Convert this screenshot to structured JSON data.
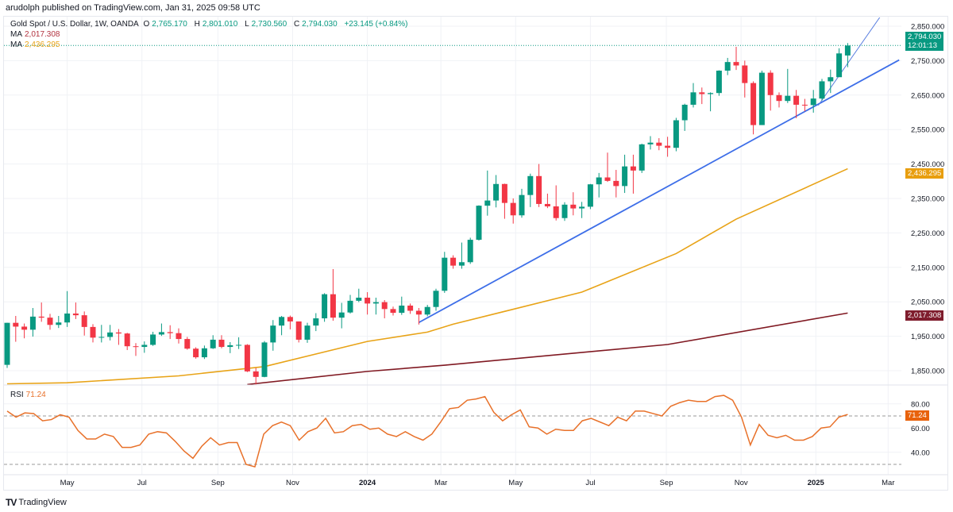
{
  "publisher": "arudolph published on TradingView.com, Jan 31, 2025 09:58 UTC",
  "legend": {
    "symbol": "Gold Spot / U.S. Dollar, 1W, OANDA",
    "open_label": "O",
    "open": "2,765.170",
    "high_label": "H",
    "high": "2,801.010",
    "low_label": "L",
    "low": "2,730.560",
    "close_label": "C",
    "close": "2,794.030",
    "change": "+23.145 (+0.84%)",
    "ma1_label": "MA",
    "ma1_value": "2,017.308",
    "ma2_label": "MA",
    "ma2_value": "2,436.295",
    "rsi_label": "RSI",
    "rsi_value": "71.24"
  },
  "tags": {
    "price": "2,794.030",
    "countdown": "12:01:13",
    "ma2": "2,436.295",
    "ma1": "2,017.308",
    "rsi": "71.24"
  },
  "brand": "TradingView",
  "colors": {
    "up": "#089981",
    "down": "#f23645",
    "ma_slow": "#801922",
    "ma_fast": "#e8a317",
    "trendline": "#3d6ee8",
    "rsi": "#e8712a",
    "rsi_tag": "#e8620c"
  },
  "chart_data": {
    "type": "candlestick",
    "title": "Gold Spot / U.S. Dollar, 1W, OANDA",
    "price_axis": {
      "ticks": [
        "2,850.000",
        "2,750.000",
        "2,650.000",
        "2,550.000",
        "2,450.000",
        "2,350.000",
        "2,250.000",
        "2,150.000",
        "2,050.000",
        "1,950.000",
        "1,850.000"
      ],
      "tick_values": [
        2850,
        2750,
        2650,
        2550,
        2450,
        2350,
        2250,
        2150,
        2050,
        1950,
        1850
      ]
    },
    "time_axis": [
      {
        "label": "May",
        "date": "2023-05-01"
      },
      {
        "label": "Jul",
        "date": "2023-07-01"
      },
      {
        "label": "Sep",
        "date": "2023-09-01"
      },
      {
        "label": "Nov",
        "date": "2023-11-01"
      },
      {
        "label": "2024",
        "date": "2024-01-01",
        "bold": true
      },
      {
        "label": "Mar",
        "date": "2024-03-01"
      },
      {
        "label": "May",
        "date": "2024-05-01"
      },
      {
        "label": "Jul",
        "date": "2024-07-01"
      },
      {
        "label": "Sep",
        "date": "2024-09-01"
      },
      {
        "label": "Nov",
        "date": "2024-11-01"
      },
      {
        "label": "2025",
        "date": "2025-01-01",
        "bold": true
      },
      {
        "label": "Mar",
        "date": "2025-03-01"
      }
    ],
    "candles_columns": [
      "date",
      "open",
      "high",
      "low",
      "close"
    ],
    "candles": [
      [
        "2023-03-13",
        1867,
        1989,
        1858,
        1989
      ],
      [
        "2023-03-20",
        1989,
        2009,
        1934,
        1978
      ],
      [
        "2023-03-27",
        1978,
        1987,
        1944,
        1969
      ],
      [
        "2023-04-03",
        1969,
        2032,
        1949,
        2007
      ],
      [
        "2023-04-10",
        2007,
        2048,
        1992,
        2004
      ],
      [
        "2023-04-17",
        2004,
        2015,
        1969,
        1983
      ],
      [
        "2023-04-24",
        1983,
        2009,
        1974,
        1990
      ],
      [
        "2023-05-01",
        1990,
        2081,
        1977,
        2016
      ],
      [
        "2023-05-08",
        2016,
        2048,
        2000,
        2011
      ],
      [
        "2023-05-15",
        2011,
        2022,
        1952,
        1977
      ],
      [
        "2023-05-22",
        1977,
        1985,
        1932,
        1946
      ],
      [
        "2023-05-29",
        1946,
        1983,
        1932,
        1948
      ],
      [
        "2023-06-05",
        1948,
        1983,
        1938,
        1961
      ],
      [
        "2023-06-12",
        1961,
        1971,
        1925,
        1958
      ],
      [
        "2023-06-19",
        1958,
        1960,
        1910,
        1921
      ],
      [
        "2023-06-26",
        1921,
        1930,
        1893,
        1919
      ],
      [
        "2023-07-03",
        1919,
        1935,
        1902,
        1925
      ],
      [
        "2023-07-10",
        1925,
        1963,
        1922,
        1955
      ],
      [
        "2023-07-17",
        1955,
        1987,
        1951,
        1962
      ],
      [
        "2023-07-24",
        1962,
        1982,
        1942,
        1959
      ],
      [
        "2023-07-31",
        1959,
        1973,
        1929,
        1942
      ],
      [
        "2023-08-07",
        1942,
        1948,
        1911,
        1914
      ],
      [
        "2023-08-14",
        1914,
        1918,
        1885,
        1889
      ],
      [
        "2023-08-21",
        1889,
        1923,
        1884,
        1915
      ],
      [
        "2023-08-28",
        1915,
        1953,
        1913,
        1940
      ],
      [
        "2023-09-04",
        1940,
        1953,
        1915,
        1919
      ],
      [
        "2023-09-11",
        1919,
        1933,
        1901,
        1924
      ],
      [
        "2023-09-18",
        1924,
        1947,
        1913,
        1925
      ],
      [
        "2023-09-25",
        1925,
        1927,
        1846,
        1848
      ],
      [
        "2023-10-02",
        1848,
        1858,
        1810,
        1832
      ],
      [
        "2023-10-09",
        1832,
        1936,
        1831,
        1932
      ],
      [
        "2023-10-16",
        1932,
        1997,
        1908,
        1981
      ],
      [
        "2023-10-23",
        1981,
        2009,
        1953,
        2006
      ],
      [
        "2023-10-30",
        2006,
        2010,
        1970,
        1993
      ],
      [
        "2023-11-06",
        1993,
        1993,
        1932,
        1940
      ],
      [
        "2023-11-13",
        1940,
        1989,
        1931,
        1981
      ],
      [
        "2023-11-20",
        1981,
        2017,
        1965,
        2002
      ],
      [
        "2023-11-27",
        2002,
        2075,
        1992,
        2072
      ],
      [
        "2023-12-04",
        2072,
        2145,
        1995,
        2004
      ],
      [
        "2023-12-11",
        2004,
        2047,
        1973,
        2019
      ],
      [
        "2023-12-18",
        2019,
        2070,
        2016,
        2053
      ],
      [
        "2023-12-25",
        2053,
        2088,
        2049,
        2062
      ],
      [
        "2024-01-01",
        2062,
        2078,
        2013,
        2045
      ],
      [
        "2024-01-08",
        2045,
        2062,
        2013,
        2049
      ],
      [
        "2024-01-15",
        2049,
        2055,
        2002,
        2029
      ],
      [
        "2024-01-22",
        2029,
        2036,
        2010,
        2018
      ],
      [
        "2024-01-29",
        2018,
        2065,
        2012,
        2039
      ],
      [
        "2024-02-05",
        2039,
        2045,
        2015,
        2024
      ],
      [
        "2024-02-12",
        2024,
        2032,
        1984,
        2013
      ],
      [
        "2024-02-19",
        2013,
        2041,
        2008,
        2035
      ],
      [
        "2024-02-26",
        2035,
        2088,
        2024,
        2082
      ],
      [
        "2024-03-04",
        2082,
        2195,
        2076,
        2178
      ],
      [
        "2024-03-11",
        2178,
        2185,
        2146,
        2155
      ],
      [
        "2024-03-18",
        2155,
        2222,
        2146,
        2165
      ],
      [
        "2024-03-25",
        2165,
        2236,
        2160,
        2230
      ],
      [
        "2024-04-01",
        2230,
        2330,
        2228,
        2329
      ],
      [
        "2024-04-08",
        2329,
        2431,
        2300,
        2344
      ],
      [
        "2024-04-15",
        2344,
        2418,
        2324,
        2392
      ],
      [
        "2024-04-22",
        2392,
        2393,
        2291,
        2337
      ],
      [
        "2024-04-29",
        2337,
        2350,
        2277,
        2301
      ],
      [
        "2024-05-06",
        2301,
        2378,
        2294,
        2360
      ],
      [
        "2024-05-13",
        2360,
        2422,
        2325,
        2415
      ],
      [
        "2024-05-20",
        2415,
        2450,
        2325,
        2334
      ],
      [
        "2024-05-27",
        2334,
        2364,
        2322,
        2327
      ],
      [
        "2024-06-03",
        2327,
        2388,
        2286,
        2293
      ],
      [
        "2024-06-10",
        2293,
        2339,
        2285,
        2332
      ],
      [
        "2024-06-17",
        2332,
        2368,
        2301,
        2321
      ],
      [
        "2024-06-24",
        2321,
        2340,
        2293,
        2326
      ],
      [
        "2024-07-01",
        2326,
        2392,
        2319,
        2391
      ],
      [
        "2024-07-08",
        2391,
        2424,
        2353,
        2411
      ],
      [
        "2024-07-15",
        2411,
        2483,
        2398,
        2401
      ],
      [
        "2024-07-22",
        2401,
        2433,
        2353,
        2386
      ],
      [
        "2024-07-29",
        2386,
        2477,
        2366,
        2443
      ],
      [
        "2024-08-05",
        2443,
        2477,
        2364,
        2431
      ],
      [
        "2024-08-12",
        2431,
        2509,
        2424,
        2507
      ],
      [
        "2024-08-19",
        2507,
        2531,
        2492,
        2512
      ],
      [
        "2024-08-26",
        2512,
        2525,
        2490,
        2503
      ],
      [
        "2024-09-02",
        2503,
        2529,
        2471,
        2497
      ],
      [
        "2024-09-09",
        2497,
        2584,
        2487,
        2577
      ],
      [
        "2024-09-16",
        2577,
        2625,
        2546,
        2622
      ],
      [
        "2024-09-23",
        2622,
        2685,
        2614,
        2658
      ],
      [
        "2024-09-30",
        2658,
        2672,
        2624,
        2653
      ],
      [
        "2024-10-07",
        2653,
        2658,
        2603,
        2656
      ],
      [
        "2024-10-14",
        2656,
        2722,
        2648,
        2721
      ],
      [
        "2024-10-21",
        2721,
        2758,
        2708,
        2746
      ],
      [
        "2024-10-28",
        2746,
        2790,
        2723,
        2736
      ],
      [
        "2024-11-04",
        2736,
        2750,
        2643,
        2685
      ],
      [
        "2024-11-11",
        2685,
        2690,
        2536,
        2563
      ],
      [
        "2024-11-18",
        2563,
        2721,
        2563,
        2715
      ],
      [
        "2024-11-25",
        2715,
        2722,
        2605,
        2650
      ],
      [
        "2024-12-02",
        2650,
        2658,
        2614,
        2633
      ],
      [
        "2024-12-09",
        2633,
        2726,
        2627,
        2648
      ],
      [
        "2024-12-16",
        2648,
        2665,
        2583,
        2622
      ],
      [
        "2024-12-23",
        2622,
        2639,
        2603,
        2621
      ],
      [
        "2024-12-30",
        2621,
        2665,
        2599,
        2640
      ],
      [
        "2025-01-06",
        2640,
        2697,
        2634,
        2690
      ],
      [
        "2025-01-13",
        2690,
        2724,
        2656,
        2702
      ],
      [
        "2025-01-20",
        2702,
        2786,
        2703,
        2771
      ],
      [
        "2025-01-27",
        2765,
        2801,
        2731,
        2794
      ]
    ],
    "moving_averages": [
      {
        "name": "MA",
        "value": "2,017.308",
        "color": "#801922",
        "points": [
          [
            "2023-09-25",
            1810
          ],
          [
            "2024-01-01",
            1848
          ],
          [
            "2024-03-04",
            1866
          ],
          [
            "2024-09-02",
            1926
          ],
          [
            "2025-01-27",
            2017.308
          ]
        ]
      },
      {
        "name": "MA",
        "value": "2,436.295",
        "color": "#e8a317",
        "points": [
          [
            "2023-03-13",
            1812
          ],
          [
            "2023-05-01",
            1815
          ],
          [
            "2023-07-31",
            1835
          ],
          [
            "2023-10-09",
            1862
          ],
          [
            "2024-01-01",
            1935
          ],
          [
            "2024-02-19",
            1962
          ],
          [
            "2024-03-11",
            1985
          ],
          [
            "2024-06-24",
            2078
          ],
          [
            "2024-09-09",
            2190
          ],
          [
            "2024-10-28",
            2290
          ],
          [
            "2025-01-27",
            2436.295
          ]
        ]
      }
    ],
    "trendlines": [
      {
        "from": [
          "2024-02-12",
          1990
        ],
        "to": [
          "2025-03-10",
          2752
        ],
        "color": "#3d6ee8"
      },
      {
        "from": [
          "2025-01-03",
          2620
        ],
        "to": [
          "2025-02-24",
          2885
        ],
        "color": "#5a7fe0"
      }
    ],
    "last_price_line": 2794.03,
    "rsi": {
      "label": "RSI",
      "value": 71.24,
      "levels": [
        70,
        30
      ],
      "ticks": [
        "80.00",
        "60.00",
        "40.00"
      ],
      "tick_values": [
        80,
        60,
        40
      ],
      "values": [
        74,
        69,
        72.5,
        72,
        66,
        67,
        71,
        69,
        58,
        51,
        51,
        55,
        53,
        44,
        44,
        46,
        55,
        57,
        56,
        49,
        41,
        35,
        45,
        52,
        46,
        48,
        48,
        30,
        28,
        55,
        62,
        65,
        62,
        50,
        57,
        60,
        68,
        56,
        57,
        62,
        63,
        59,
        60,
        55,
        53,
        57,
        53,
        50,
        55,
        65,
        76,
        77,
        83,
        84,
        86,
        73,
        66,
        71,
        75,
        61,
        60,
        55,
        59,
        58,
        58,
        66,
        68,
        65,
        62,
        69,
        66,
        74,
        74,
        72,
        70,
        78,
        81,
        83,
        82,
        82,
        86,
        87,
        83,
        69,
        46,
        63,
        54,
        52,
        54,
        50,
        50,
        53,
        60,
        61,
        69,
        71.24
      ]
    }
  }
}
